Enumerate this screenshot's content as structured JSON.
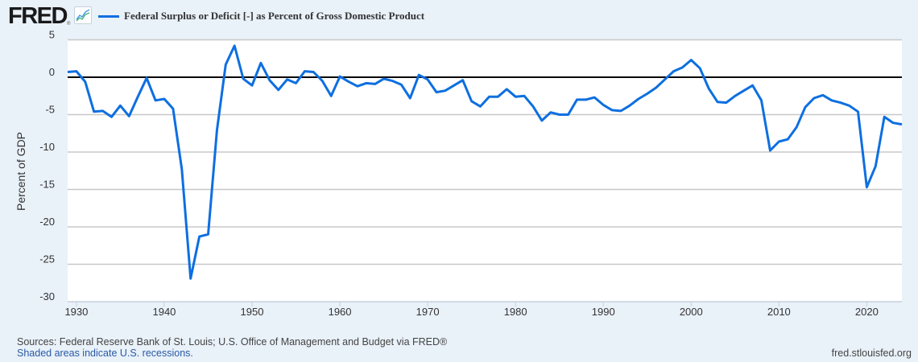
{
  "header": {
    "logo_text": "FRED",
    "logo_reg": "®",
    "legend_label": "Federal Surplus or Deficit [-] as Percent of Gross Domestic Product"
  },
  "footer": {
    "sources": "Sources: Federal Reserve Bank of St. Louis; U.S. Office of Management and Budget via FRED®",
    "recessions_note": "Shaded areas indicate U.S. recessions.",
    "url": "fred.stlouisfed.org"
  },
  "colors": {
    "series": "#0d6fe0",
    "zero_line": "#000000",
    "grid": "#c8c8c8",
    "plot_bg": "#ffffff",
    "page_bg": "#e9f1f9"
  },
  "chart_data": {
    "type": "line",
    "title": "Federal Surplus or Deficit [-] as Percent of Gross Domestic Product",
    "xlabel": "",
    "ylabel": "Percent of GDP",
    "xlim": [
      1929,
      2024
    ],
    "ylim": [
      -30,
      5
    ],
    "grid": true,
    "legend": "top-left",
    "x_ticks": [
      1930,
      1940,
      1950,
      1960,
      1970,
      1980,
      1990,
      2000,
      2010,
      2020
    ],
    "x_tick_labels": [
      "1930",
      "1940",
      "1950",
      "1960",
      "1970",
      "1980",
      "1990",
      "2000",
      "2010",
      "2020"
    ],
    "y_ticks": [
      5,
      0,
      -5,
      -10,
      -15,
      -20,
      -25,
      -30
    ],
    "y_tick_labels": [
      "5",
      "0",
      "-5",
      "-10",
      "-15",
      "-20",
      "-25",
      "-30"
    ],
    "reference_line": 0,
    "series": [
      {
        "name": "Federal Surplus or Deficit [-] as Percent of Gross Domestic Product",
        "x": [
          1929,
          1930,
          1931,
          1932,
          1933,
          1934,
          1935,
          1936,
          1937,
          1938,
          1939,
          1940,
          1941,
          1942,
          1943,
          1944,
          1945,
          1946,
          1947,
          1948,
          1949,
          1950,
          1951,
          1952,
          1953,
          1954,
          1955,
          1956,
          1957,
          1958,
          1959,
          1960,
          1961,
          1962,
          1963,
          1964,
          1965,
          1966,
          1967,
          1968,
          1969,
          1970,
          1971,
          1972,
          1973,
          1974,
          1975,
          1976,
          1977,
          1978,
          1979,
          1980,
          1981,
          1982,
          1983,
          1984,
          1985,
          1986,
          1987,
          1988,
          1989,
          1990,
          1991,
          1992,
          1993,
          1994,
          1995,
          1996,
          1997,
          1998,
          1999,
          2000,
          2001,
          2002,
          2003,
          2004,
          2005,
          2006,
          2007,
          2008,
          2009,
          2010,
          2011,
          2012,
          2013,
          2014,
          2015,
          2016,
          2017,
          2018,
          2019,
          2020,
          2021,
          2022,
          2023,
          2024
        ],
        "values": [
          0.7,
          0.8,
          -0.6,
          -4.6,
          -4.5,
          -5.3,
          -3.8,
          -5.2,
          -2.6,
          -0.1,
          -3.1,
          -2.9,
          -4.2,
          -12.3,
          -26.9,
          -21.3,
          -21.0,
          -7.1,
          1.7,
          4.2,
          -0.2,
          -1.1,
          1.9,
          -0.4,
          -1.7,
          -0.3,
          -0.8,
          0.8,
          0.7,
          -0.5,
          -2.5,
          0.1,
          -0.6,
          -1.2,
          -0.8,
          -0.9,
          -0.2,
          -0.5,
          -1.0,
          -2.8,
          0.3,
          -0.3,
          -2.0,
          -1.8,
          -1.1,
          -0.4,
          -3.2,
          -3.9,
          -2.6,
          -2.6,
          -1.6,
          -2.6,
          -2.5,
          -3.9,
          -5.8,
          -4.7,
          -5.0,
          -5.0,
          -3.0,
          -3.0,
          -2.7,
          -3.7,
          -4.4,
          -4.5,
          -3.8,
          -2.9,
          -2.2,
          -1.4,
          -0.3,
          0.8,
          1.3,
          2.3,
          1.2,
          -1.5,
          -3.3,
          -3.4,
          -2.5,
          -1.8,
          -1.1,
          -3.1,
          -9.8,
          -8.6,
          -8.3,
          -6.7,
          -4.0,
          -2.8,
          -2.4,
          -3.1,
          -3.4,
          -3.8,
          -4.6,
          -14.7,
          -11.9,
          -5.3,
          -6.1,
          -6.3
        ]
      }
    ]
  }
}
